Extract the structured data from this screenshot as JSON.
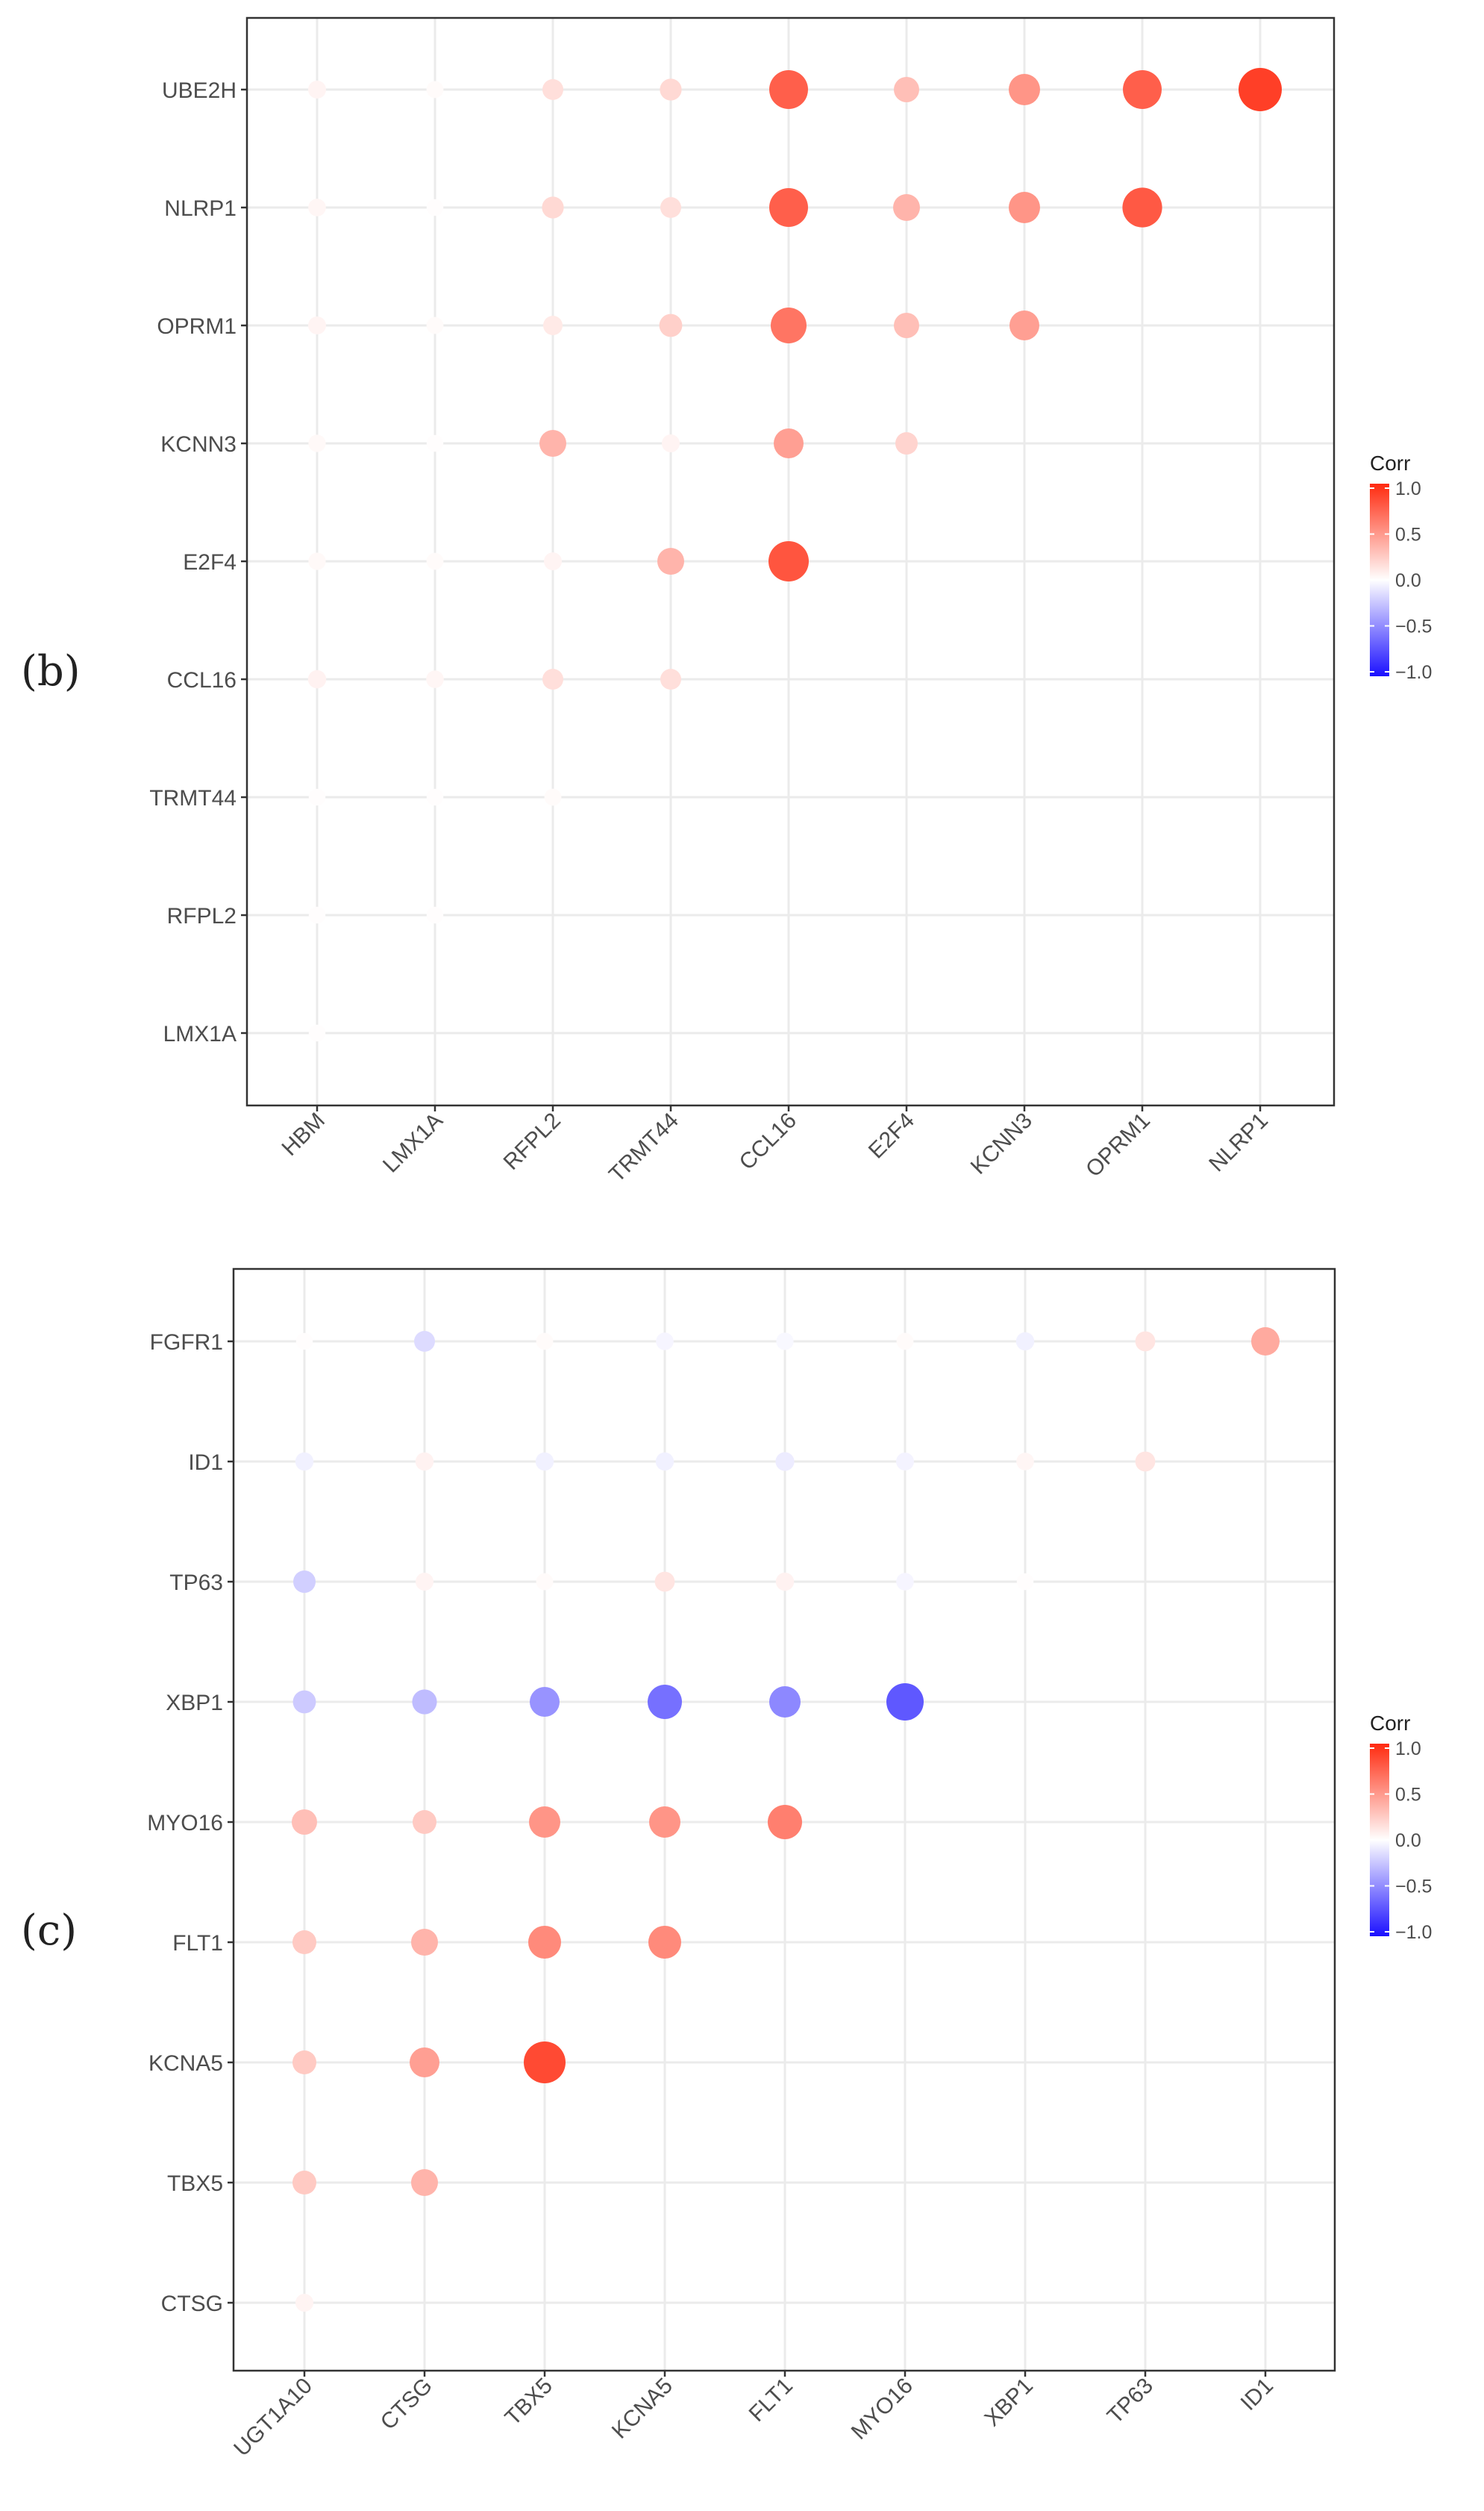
{
  "chart_data": [
    {
      "id": "b",
      "type": "scatter",
      "subtype": "correlation-dot-matrix",
      "panel_label": "(b)",
      "x_categories": [
        "HBM",
        "LMX1A",
        "RFPL2",
        "TRMT44",
        "CCL16",
        "E2F4",
        "KCNN3",
        "OPRM1",
        "NLRP1"
      ],
      "y_categories": [
        "UBE2H",
        "NLRP1",
        "OPRM1",
        "KCNN3",
        "E2F4",
        "CCL16",
        "TRMT44",
        "RFPL2",
        "LMX1A"
      ],
      "values": [
        [
          0.05,
          0.02,
          0.15,
          0.18,
          0.75,
          0.3,
          0.5,
          0.75,
          0.9
        ],
        [
          0.04,
          0.01,
          0.18,
          0.15,
          0.75,
          0.35,
          0.5,
          0.78,
          null
        ],
        [
          0.05,
          0.02,
          0.1,
          0.22,
          0.65,
          0.3,
          0.45,
          null,
          null
        ],
        [
          0.03,
          0.01,
          0.35,
          0.05,
          0.45,
          0.2,
          null,
          null,
          null
        ],
        [
          0.03,
          0.02,
          0.05,
          0.35,
          0.8,
          null,
          null,
          null,
          null
        ],
        [
          0.06,
          0.04,
          0.15,
          0.15,
          null,
          null,
          null,
          null,
          null
        ],
        [
          0.01,
          0.01,
          0.02,
          null,
          null,
          null,
          null,
          null,
          null
        ],
        [
          0.01,
          0.01,
          null,
          null,
          null,
          null,
          null,
          null,
          null
        ],
        [
          0.01,
          null,
          null,
          null,
          null,
          null,
          null,
          null,
          null
        ]
      ],
      "legend": {
        "title": "Corr",
        "ticks": [
          "1.0",
          "0.5",
          "0.0",
          "−0.5",
          "−1.0"
        ],
        "range": [
          -1,
          1
        ]
      },
      "colors": {
        "positive": "#ff2a0f",
        "neutral": "#ffffff",
        "negative": "#1b10ff"
      },
      "xlabel": "",
      "ylabel": ""
    },
    {
      "id": "c",
      "type": "scatter",
      "subtype": "correlation-dot-matrix",
      "panel_label": "(c)",
      "x_categories": [
        "UGT1A10",
        "CTSG",
        "TBX5",
        "KCNA5",
        "FLT1",
        "MYO16",
        "XBP1",
        "TP63",
        "ID1"
      ],
      "y_categories": [
        "FGFR1",
        "ID1",
        "TP63",
        "XBP1",
        "MYO16",
        "FLT1",
        "KCNA5",
        "TBX5",
        "CTSG"
      ],
      "values": [
        [
          0.01,
          -0.15,
          0.02,
          -0.04,
          -0.03,
          0.02,
          -0.06,
          0.12,
          0.4
        ],
        [
          -0.06,
          0.06,
          -0.06,
          -0.06,
          -0.08,
          -0.05,
          0.04,
          0.12,
          null
        ],
        [
          -0.2,
          0.05,
          0.02,
          0.12,
          0.06,
          -0.04,
          0.01,
          null,
          null
        ],
        [
          -0.22,
          -0.28,
          -0.45,
          -0.6,
          -0.5,
          -0.7,
          null,
          null,
          null
        ],
        [
          0.3,
          0.25,
          0.5,
          0.5,
          0.6,
          null,
          null,
          null,
          null
        ],
        [
          0.25,
          0.35,
          0.55,
          0.55,
          null,
          null,
          null,
          null,
          null
        ],
        [
          0.25,
          0.45,
          0.85,
          null,
          null,
          null,
          null,
          null,
          null
        ],
        [
          0.25,
          0.35,
          null,
          null,
          null,
          null,
          null,
          null,
          null
        ],
        [
          0.05,
          null,
          null,
          null,
          null,
          null,
          null,
          null,
          null
        ]
      ],
      "legend": {
        "title": "Corr",
        "ticks": [
          "1.0",
          "0.5",
          "0.0",
          "−0.5",
          "−1.0"
        ],
        "range": [
          -1,
          1
        ]
      },
      "colors": {
        "positive": "#ff2a0f",
        "neutral": "#ffffff",
        "negative": "#1b10ff"
      },
      "xlabel": "",
      "ylabel": ""
    }
  ]
}
